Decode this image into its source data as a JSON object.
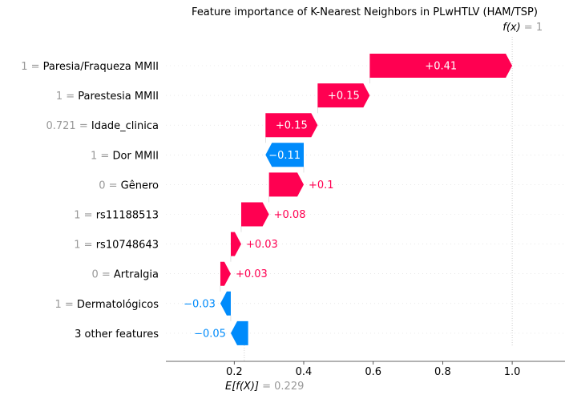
{
  "chart_data": {
    "type": "waterfall",
    "title": "Feature importance of K-Nearest Neighbors in PLwHTLV (HAM/TSP)",
    "fx_label": "f(x)",
    "fx_value": "= 1",
    "fx": 1.0,
    "base_label": "E[f(X)]",
    "base_value_text": "= 0.229",
    "base_value": 0.229,
    "xlim": [
      0.0,
      1.15
    ],
    "xticks": [
      0.2,
      0.4,
      0.6,
      0.8,
      1.0
    ],
    "xtick_labels": [
      "0.2",
      "0.4",
      "0.6",
      "0.8",
      "1.0"
    ],
    "colors": {
      "positive": "#ff0051",
      "negative": "#008bfb",
      "value_text": "#999999",
      "grid": "#cccccc"
    },
    "features": [
      {
        "feature_value": "1",
        "name": "Paresia/Fraqueza MMII",
        "contribution": 0.41,
        "label": "+0.41"
      },
      {
        "feature_value": "1",
        "name": "Parestesia MMII",
        "contribution": 0.15,
        "label": "+0.15"
      },
      {
        "feature_value": "0.721",
        "name": "Idade_clinica",
        "contribution": 0.15,
        "label": "+0.15"
      },
      {
        "feature_value": "1",
        "name": "Dor MMII",
        "contribution": -0.11,
        "label": "−0.11"
      },
      {
        "feature_value": "0",
        "name": "Gênero",
        "contribution": 0.1,
        "label": "+0.1"
      },
      {
        "feature_value": "1",
        "name": "rs11188513",
        "contribution": 0.08,
        "label": "+0.08"
      },
      {
        "feature_value": "1",
        "name": "rs10748643",
        "contribution": 0.03,
        "label": "+0.03"
      },
      {
        "feature_value": "0",
        "name": "Artralgia",
        "contribution": 0.03,
        "label": "+0.03"
      },
      {
        "feature_value": "1",
        "name": "Dermatológicos",
        "contribution": -0.03,
        "label": "−0.03"
      },
      {
        "feature_value": "",
        "name": "3 other features",
        "contribution": -0.05,
        "label": "−0.05"
      }
    ]
  }
}
